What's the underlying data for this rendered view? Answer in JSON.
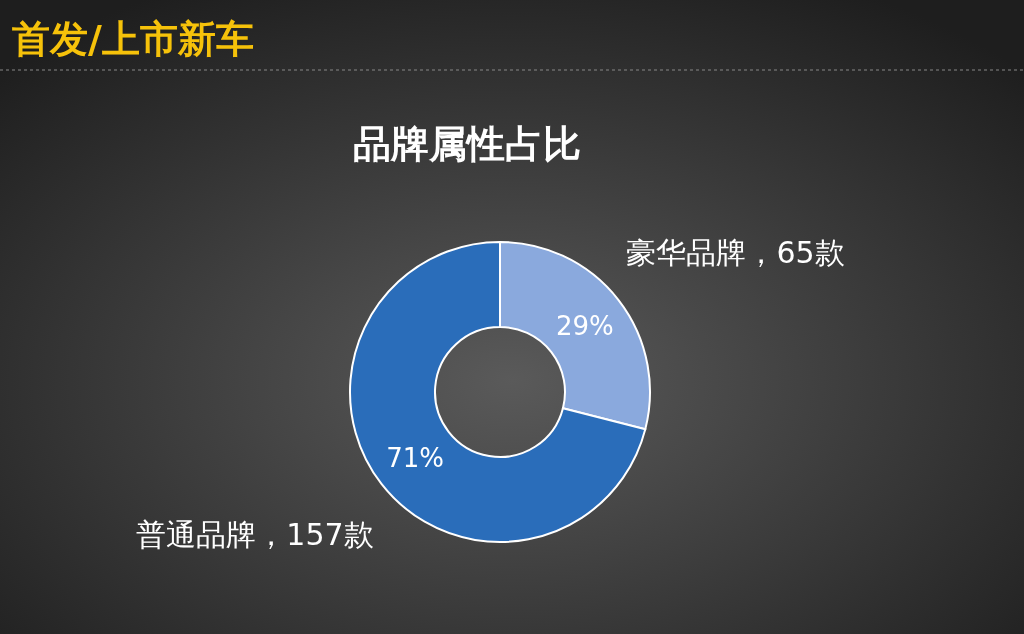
{
  "chart_data": {
    "type": "donut",
    "title": "首发/上市新车",
    "subtitle": "品牌属性占比",
    "categories": [
      "豪华品牌，65款",
      "普通品牌，157款"
    ],
    "values": [
      29,
      71
    ],
    "value_labels": [
      "29%",
      "71%"
    ],
    "colors": [
      "#8aa9dd",
      "#2a6dba"
    ],
    "legend": false
  }
}
